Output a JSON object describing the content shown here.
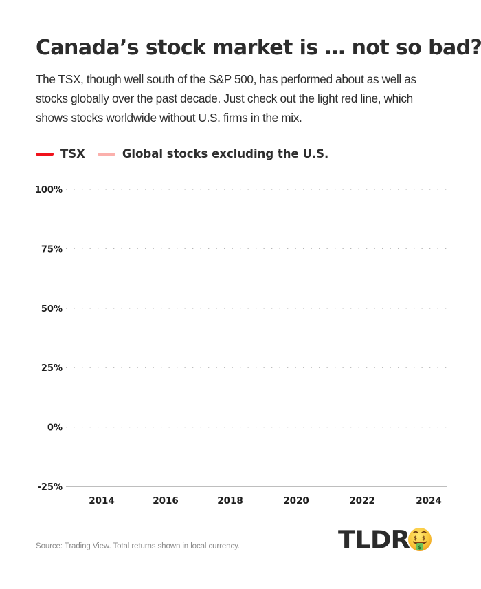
{
  "header": {
    "title": "Canada’s stock market is … not so bad?",
    "subtitle": "The TSX, though well south of the S&P 500, has performed about as well as stocks globally over the past decade. Just check out the light red line, which shows stocks worldwide without U.S. firms in the mix."
  },
  "chart_data": {
    "type": "line",
    "title": "Canada’s stock market is … not so bad?",
    "xlabel": "",
    "ylabel": "",
    "x_ticks": [
      "2014",
      "2016",
      "2018",
      "2020",
      "2022",
      "2024"
    ],
    "y_ticks": [
      "100%",
      "75%",
      "50%",
      "25%",
      "0%",
      "-25%"
    ],
    "y_tick_values": [
      100,
      75,
      50,
      25,
      0,
      -25
    ],
    "ylim": [
      -25,
      100
    ],
    "xlim": [
      2013,
      2024.5
    ],
    "grid": true,
    "legend_position": "top-left",
    "series": [
      {
        "name": "TSX",
        "color": "#f0121b",
        "values": []
      },
      {
        "name": "Global stocks excluding the U.S.",
        "color": "#fbb0ac",
        "values": []
      }
    ]
  },
  "footer": {
    "source": "Source: Trading View. Total returns shown in local currency.",
    "logo_text": "TLDR",
    "logo_icon": "money-mouth-face-emoji"
  },
  "colors": {
    "tsx": "#f0121b",
    "global_ex_us": "#fbb0ac",
    "text": "#2c2c2c",
    "gridline": "#b5b5b5",
    "axis": "#a8a8a8"
  }
}
